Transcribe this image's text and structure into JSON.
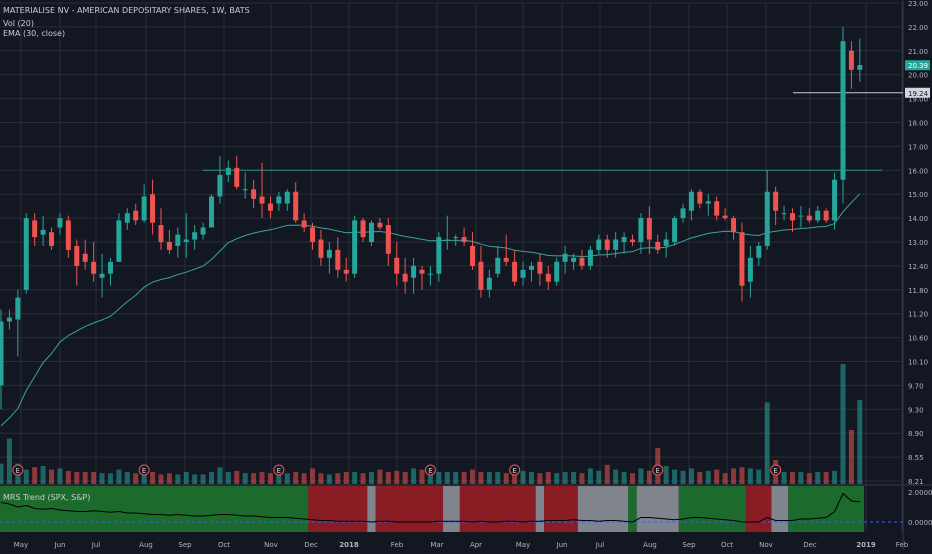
{
  "header": {
    "title": "MATERIALISE NV - AMERICAN DEPOSITARY SHARES, 1W, BATS",
    "vol_label": "Vol (20)",
    "ema_label": "EMA (30, close)"
  },
  "indicator": {
    "label": "MRS Trend (SPX, S&P)"
  },
  "colors": {
    "background": "#131722",
    "up": "#26a69a",
    "down": "#ef5350",
    "ema": "#3aa39b",
    "grid": "#2a2e39",
    "text": "#b2b5be",
    "trend_green": "#1d6b2c",
    "trend_red": "#8a1c24",
    "trend_gray": "#80848c"
  },
  "icons": {
    "earnings_marker": "earnings-e-icon"
  },
  "chart_data": {
    "type": "candlestick",
    "price_axis": {
      "labels": [
        "23.00",
        "22.00",
        "21.00",
        "20.00",
        "19.00",
        "18.00",
        "17.00",
        "16.00",
        "15.00",
        "14.00",
        "13.00",
        "12.40",
        "11.80",
        "11.20",
        "10.60",
        "10.10",
        "9.70",
        "9.30",
        "8.90",
        "8.55",
        "8.21"
      ],
      "values": [
        23,
        22,
        21,
        20,
        19,
        18,
        17,
        16,
        15,
        14,
        13,
        12.4,
        11.8,
        11.2,
        10.6,
        10.1,
        9.7,
        9.3,
        8.9,
        8.55,
        8.21
      ],
      "last_price_label": "20.39",
      "last_price": 20.39,
      "marked_price_label": "19.24",
      "marked_price": 19.24,
      "log_scale": true
    },
    "indicator_axis": {
      "labels": [
        "2.0000",
        "0.0000"
      ],
      "values": [
        2,
        0
      ]
    },
    "x_axis": {
      "labels": [
        "May",
        "Jun",
        "Jul",
        "Aug",
        "Sep",
        "Oct",
        "Nov",
        "Dec",
        "2018",
        "Feb",
        "Mar",
        "Apr",
        "May",
        "Jun",
        "Jul",
        "Aug",
        "Sep",
        "Oct",
        "Nov",
        "Dec",
        "2019",
        "Feb"
      ]
    },
    "horizontal_lines": [
      16.0,
      19.24
    ],
    "earnings_marker_label": "E",
    "earnings_marker_bars": [
      2,
      17,
      33,
      51,
      61,
      78,
      92
    ],
    "ema_period": 30,
    "candles": [
      [
        9.7,
        11.3,
        9.3,
        11.0
      ],
      [
        11.0,
        11.3,
        10.8,
        11.1
      ],
      [
        11.05,
        11.8,
        10.2,
        11.6
      ],
      [
        11.8,
        14.2,
        11.7,
        14.0
      ],
      [
        13.9,
        14.2,
        12.9,
        13.2
      ],
      [
        13.3,
        14.1,
        12.9,
        13.5
      ],
      [
        13.4,
        13.6,
        12.8,
        12.9
      ],
      [
        13.6,
        14.2,
        13.3,
        14.0
      ],
      [
        13.9,
        14.1,
        12.6,
        12.8
      ],
      [
        12.9,
        13.1,
        11.9,
        12.4
      ],
      [
        12.7,
        13.1,
        12.3,
        12.5
      ],
      [
        12.5,
        13.0,
        12.0,
        12.2
      ],
      [
        12.1,
        12.7,
        11.6,
        12.2
      ],
      [
        12.2,
        12.6,
        11.9,
        12.5
      ],
      [
        12.5,
        14.2,
        12.5,
        13.9
      ],
      [
        13.8,
        14.4,
        13.5,
        14.2
      ],
      [
        14.3,
        14.6,
        13.7,
        13.9
      ],
      [
        13.9,
        15.4,
        13.8,
        14.9
      ],
      [
        15.0,
        15.6,
        13.3,
        13.8
      ],
      [
        13.7,
        14.4,
        12.8,
        13.0
      ],
      [
        13.0,
        13.5,
        12.7,
        12.8
      ],
      [
        12.9,
        13.6,
        12.6,
        13.3
      ],
      [
        13.0,
        14.2,
        12.6,
        13.1
      ],
      [
        13.1,
        13.7,
        12.8,
        13.4
      ],
      [
        13.3,
        13.8,
        13.1,
        13.6
      ],
      [
        13.6,
        15.0,
        13.6,
        14.9
      ],
      [
        14.9,
        16.6,
        14.6,
        15.8
      ],
      [
        15.8,
        16.4,
        15.5,
        16.1
      ],
      [
        16.1,
        16.6,
        15.2,
        15.3
      ],
      [
        15.2,
        15.9,
        14.8,
        15.2
      ],
      [
        15.2,
        15.6,
        14.4,
        14.8
      ],
      [
        14.9,
        16.3,
        14.0,
        14.6
      ],
      [
        14.6,
        14.9,
        14.0,
        14.3
      ],
      [
        14.6,
        15.1,
        14.3,
        14.9
      ],
      [
        14.6,
        15.2,
        14.3,
        15.1
      ],
      [
        15.1,
        15.5,
        13.8,
        13.9
      ],
      [
        13.9,
        14.2,
        13.4,
        13.6
      ],
      [
        13.6,
        13.8,
        12.8,
        13.0
      ],
      [
        13.1,
        13.5,
        12.4,
        12.6
      ],
      [
        12.6,
        13.0,
        12.2,
        12.8
      ],
      [
        12.8,
        13.2,
        12.1,
        12.3
      ],
      [
        12.3,
        12.6,
        12.0,
        12.2
      ],
      [
        12.2,
        14.1,
        12.1,
        13.9
      ],
      [
        13.9,
        14.0,
        13.0,
        13.2
      ],
      [
        13.0,
        13.9,
        12.9,
        13.8
      ],
      [
        13.8,
        14.0,
        13.5,
        13.6
      ],
      [
        13.7,
        14.0,
        12.4,
        12.7
      ],
      [
        12.6,
        13.0,
        11.9,
        12.2
      ],
      [
        12.2,
        12.6,
        11.7,
        12.0
      ],
      [
        12.1,
        12.6,
        11.7,
        12.4
      ],
      [
        12.3,
        12.4,
        11.8,
        12.2
      ],
      [
        12.2,
        12.4,
        11.9,
        12.2
      ],
      [
        12.2,
        13.4,
        12.0,
        13.2
      ],
      [
        13.1,
        14.1,
        12.8,
        13.1
      ],
      [
        13.2,
        13.3,
        12.9,
        13.2
      ],
      [
        13.2,
        13.6,
        12.9,
        13.0
      ],
      [
        12.9,
        13.4,
        12.3,
        12.4
      ],
      [
        12.5,
        12.9,
        11.6,
        11.8
      ],
      [
        11.8,
        12.3,
        11.6,
        12.1
      ],
      [
        12.2,
        12.9,
        12.1,
        12.6
      ],
      [
        12.6,
        13.3,
        12.4,
        12.5
      ],
      [
        12.5,
        12.8,
        11.9,
        12.0
      ],
      [
        12.1,
        12.5,
        11.9,
        12.3
      ],
      [
        12.3,
        12.5,
        12.0,
        12.4
      ],
      [
        12.5,
        12.7,
        11.9,
        12.2
      ],
      [
        12.2,
        12.4,
        11.8,
        12.0
      ],
      [
        12.0,
        12.6,
        11.9,
        12.5
      ],
      [
        12.5,
        12.9,
        12.2,
        12.7
      ],
      [
        12.5,
        12.7,
        12.3,
        12.6
      ],
      [
        12.6,
        12.8,
        12.3,
        12.4
      ],
      [
        12.4,
        12.9,
        12.3,
        12.8
      ],
      [
        12.8,
        13.3,
        12.7,
        13.1
      ],
      [
        13.1,
        13.3,
        12.6,
        12.8
      ],
      [
        12.8,
        13.4,
        12.6,
        13.1
      ],
      [
        13.0,
        13.4,
        12.7,
        13.2
      ],
      [
        13.1,
        13.3,
        12.9,
        13.0
      ],
      [
        13.0,
        14.2,
        12.7,
        14.0
      ],
      [
        14.0,
        14.5,
        12.7,
        13.1
      ],
      [
        13.0,
        13.3,
        12.7,
        12.8
      ],
      [
        12.9,
        13.4,
        12.6,
        13.1
      ],
      [
        13.0,
        14.1,
        12.9,
        14.0
      ],
      [
        14.0,
        14.6,
        13.8,
        14.4
      ],
      [
        14.3,
        15.2,
        13.9,
        15.1
      ],
      [
        15.1,
        15.2,
        14.4,
        14.6
      ],
      [
        14.6,
        15.0,
        14.1,
        14.7
      ],
      [
        14.7,
        14.9,
        13.9,
        14.1
      ],
      [
        14.1,
        14.4,
        13.9,
        14.0
      ],
      [
        14.0,
        14.1,
        13.1,
        13.4
      ],
      [
        13.4,
        13.8,
        11.5,
        11.9
      ],
      [
        12.0,
        12.9,
        11.6,
        12.6
      ],
      [
        12.6,
        13.0,
        12.4,
        12.9
      ],
      [
        12.9,
        16.0,
        12.8,
        15.1
      ],
      [
        15.1,
        15.3,
        13.7,
        14.3
      ],
      [
        14.2,
        14.5,
        13.9,
        14.2
      ],
      [
        14.2,
        14.4,
        13.4,
        13.9
      ],
      [
        14.1,
        14.5,
        13.6,
        14.1
      ],
      [
        14.1,
        14.4,
        13.8,
        13.9
      ],
      [
        13.9,
        14.5,
        13.8,
        14.3
      ],
      [
        14.3,
        14.4,
        13.8,
        13.9
      ],
      [
        13.9,
        15.9,
        13.5,
        15.6
      ],
      [
        15.6,
        22.0,
        14.6,
        21.4
      ],
      [
        21.0,
        21.4,
        19.4,
        20.2
      ],
      [
        20.2,
        21.5,
        19.7,
        20.4
      ]
    ],
    "volume": [
      0.17,
      0.38,
      0.17,
      0.12,
      0.14,
      0.15,
      0.12,
      0.13,
      0.11,
      0.1,
      0.1,
      0.1,
      0.09,
      0.09,
      0.12,
      0.1,
      0.09,
      0.1,
      0.1,
      0.08,
      0.09,
      0.08,
      0.1,
      0.08,
      0.08,
      0.1,
      0.14,
      0.1,
      0.11,
      0.09,
      0.09,
      0.1,
      0.09,
      0.1,
      0.09,
      0.1,
      0.09,
      0.13,
      0.09,
      0.08,
      0.09,
      0.1,
      0.1,
      0.09,
      0.1,
      0.12,
      0.1,
      0.11,
      0.1,
      0.13,
      0.12,
      0.11,
      0.1,
      0.1,
      0.1,
      0.1,
      0.12,
      0.1,
      0.1,
      0.1,
      0.09,
      0.09,
      0.11,
      0.1,
      0.09,
      0.1,
      0.09,
      0.1,
      0.1,
      0.09,
      0.13,
      0.11,
      0.16,
      0.12,
      0.1,
      0.09,
      0.13,
      0.11,
      0.3,
      0.15,
      0.12,
      0.11,
      0.13,
      0.1,
      0.11,
      0.12,
      0.09,
      0.13,
      0.14,
      0.13,
      0.12,
      0.68,
      0.2,
      0.1,
      0.1,
      0.1,
      0.09,
      0.1,
      0.1,
      0.11,
      1.0,
      0.45,
      0.7
    ],
    "volume_colors_by_candle": true,
    "mrs_trend_segments": [
      {
        "start": 0,
        "end": 37,
        "state": "green"
      },
      {
        "start": 37,
        "end": 44,
        "state": "red"
      },
      {
        "start": 44,
        "end": 45,
        "state": "gray"
      },
      {
        "start": 45,
        "end": 53,
        "state": "red"
      },
      {
        "start": 53,
        "end": 55,
        "state": "gray"
      },
      {
        "start": 55,
        "end": 64,
        "state": "red"
      },
      {
        "start": 64,
        "end": 65,
        "state": "gray"
      },
      {
        "start": 65,
        "end": 69,
        "state": "red"
      },
      {
        "start": 69,
        "end": 75,
        "state": "gray"
      },
      {
        "start": 75,
        "end": 76,
        "state": "green"
      },
      {
        "start": 76,
        "end": 81,
        "state": "gray"
      },
      {
        "start": 81,
        "end": 89,
        "state": "green"
      },
      {
        "start": 89,
        "end": 92,
        "state": "red"
      },
      {
        "start": 92,
        "end": 94,
        "state": "gray"
      },
      {
        "start": 94,
        "end": 103,
        "state": "green"
      }
    ],
    "mrs_line": [
      1.3,
      1.2,
      1.0,
      1.1,
      0.9,
      0.85,
      0.9,
      0.8,
      0.75,
      0.7,
      0.7,
      0.75,
      0.7,
      0.65,
      0.7,
      0.6,
      0.6,
      0.55,
      0.5,
      0.5,
      0.45,
      0.5,
      0.45,
      0.4,
      0.4,
      0.45,
      0.5,
      0.5,
      0.45,
      0.4,
      0.4,
      0.35,
      0.3,
      0.3,
      0.3,
      0.25,
      0.2,
      0.15,
      0.1,
      0.1,
      0.05,
      0.05,
      0.05,
      0.05,
      0.0,
      0.05,
      0.05,
      0.0,
      0.0,
      0.0,
      0.0,
      0.0,
      0.05,
      0.05,
      0.05,
      0.05,
      0.0,
      0.05,
      0.0,
      0.0,
      0.05,
      0.05,
      0.0,
      0.05,
      0.05,
      0.1,
      0.1,
      0.1,
      0.15,
      0.1,
      0.1,
      0.05,
      0.1,
      0.1,
      0.05,
      0.0,
      0.3,
      0.3,
      0.25,
      0.2,
      0.15,
      0.2,
      0.3,
      0.3,
      0.25,
      0.2,
      0.15,
      0.1,
      0.0,
      0.0,
      0.0,
      0.3,
      0.1,
      0.1,
      0.1,
      0.2,
      0.2,
      0.25,
      0.3,
      0.7,
      1.9,
      1.4,
      1.35
    ],
    "mrs_zero_line": 0
  }
}
